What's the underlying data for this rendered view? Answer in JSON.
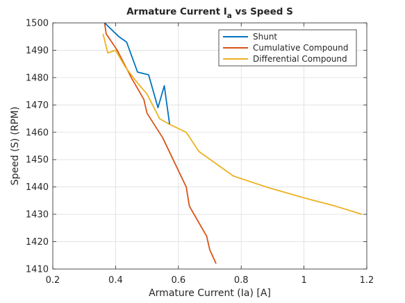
{
  "chart_data": {
    "type": "line",
    "title": "Armature Current I",
    "title_subscript": "a",
    "title_suffix": " vs Speed S",
    "xlabel": "Armature Current (Ia) [A]",
    "ylabel": "Speed (S) (RPM)",
    "xlim": [
      0.2,
      1.2
    ],
    "ylim": [
      1410,
      1500
    ],
    "xticks": [
      0.2,
      0.4,
      0.6,
      0.8,
      1,
      1.2
    ],
    "xtick_labels": [
      "0.2",
      "0.4",
      "0.6",
      "0.8",
      "1",
      "1.2"
    ],
    "yticks": [
      1410,
      1420,
      1430,
      1440,
      1450,
      1460,
      1470,
      1480,
      1490,
      1500
    ],
    "ytick_labels": [
      "1410",
      "1420",
      "1430",
      "1440",
      "1450",
      "1460",
      "1470",
      "1480",
      "1490",
      "1500"
    ],
    "grid": true,
    "legend_position": "top-right",
    "series": [
      {
        "name": "Shunt",
        "color": "#0072bd",
        "x": [
          0.365,
          0.41,
          0.435,
          0.47,
          0.505,
          0.535,
          0.555,
          0.572
        ],
        "y": [
          1500,
          1495,
          1493,
          1482,
          1481,
          1469,
          1477,
          1463
        ]
      },
      {
        "name": "Cumulative Compound",
        "color": "#d95319",
        "x": [
          0.365,
          0.37,
          0.405,
          0.45,
          0.475,
          0.49,
          0.5,
          0.55,
          0.6,
          0.625,
          0.635,
          0.66,
          0.69,
          0.7,
          0.72
        ],
        "y": [
          1500,
          1496,
          1490,
          1480,
          1475,
          1472,
          1467,
          1458,
          1446,
          1440,
          1433,
          1428,
          1422,
          1417,
          1412
        ]
      },
      {
        "name": "Differential Compound",
        "color": "#edb120",
        "x": [
          0.36,
          0.375,
          0.4,
          0.43,
          0.47,
          0.5,
          0.54,
          0.57,
          0.625,
          0.665,
          0.775,
          0.88,
          1,
          1.1,
          1.185
        ],
        "y": [
          1496,
          1489,
          1490,
          1484,
          1478,
          1474,
          1465,
          1463,
          1460,
          1453,
          1444,
          1440,
          1436,
          1433,
          1430
        ]
      }
    ]
  }
}
